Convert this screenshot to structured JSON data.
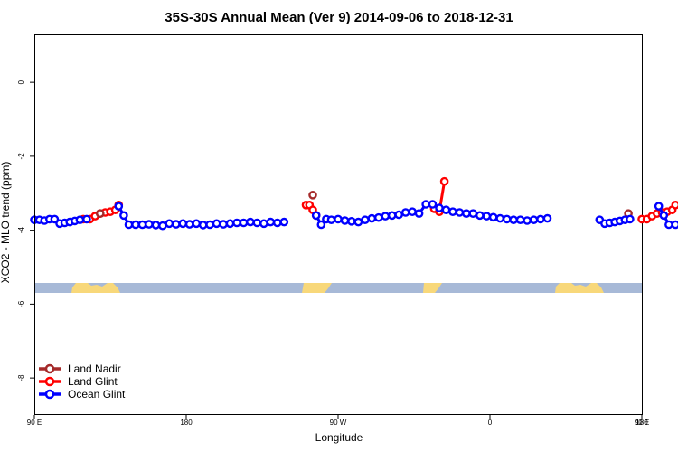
{
  "chart_data": {
    "type": "line",
    "title": "35S-30S Annual Mean (Ver 9)   2014-09-06 to 2018-12-31",
    "xlabel": "Longitude",
    "ylabel": "XCO2 - MLO trend (ppm)",
    "xlim": [
      90,
      450
    ],
    "ylim": [
      -9,
      1.3
    ],
    "x_ticks": [
      {
        "value": 90,
        "label": "90 E"
      },
      {
        "value": 180,
        "label": "180"
      },
      {
        "value": 270,
        "label": "90 W"
      },
      {
        "value": 360,
        "label": "0"
      },
      {
        "value": 450,
        "label": "90 E"
      },
      {
        "value": 540,
        "label": "180"
      }
    ],
    "y_ticks": [
      {
        "value": 0,
        "label": "0"
      },
      {
        "value": -2,
        "label": "-2"
      },
      {
        "value": -4,
        "label": "-4"
      },
      {
        "value": -6,
        "label": "-6"
      },
      {
        "value": -8,
        "label": "-8"
      }
    ],
    "legend_position": "bottom-left",
    "colors": {
      "land_nadir": "#a52a2a",
      "land_glint": "#ff0000",
      "ocean_glint": "#0000ff",
      "ocean_band": "#a7b9d7",
      "land_band": "#f8d87a"
    },
    "series": [
      {
        "name": "Land Nadir",
        "color": "#a52a2a",
        "segments": [
          [
            [
              129,
              -3.55
            ]
          ],
          [
            [
              255,
              -3.05
            ]
          ],
          [
            [
              442,
              -3.55
            ]
          ]
        ]
      },
      {
        "name": "Land Glint",
        "color": "#ff0000",
        "segments": [
          [
            [
              119,
              -3.7
            ],
            [
              123,
              -3.7
            ],
            [
              126,
              -3.62
            ],
            [
              129,
              -3.55
            ],
            [
              132,
              -3.52
            ],
            [
              135,
              -3.5
            ],
            [
              138,
              -3.45
            ],
            [
              140,
              -3.32
            ]
          ],
          [
            [
              251,
              -3.32
            ],
            [
              253,
              -3.32
            ],
            [
              255,
              -3.45
            ],
            [
              257,
              -3.6
            ]
          ],
          [
            [
              327,
              -3.42
            ],
            [
              330,
              -3.5
            ],
            [
              333,
              -2.68
            ]
          ],
          [
            [
              450,
              -3.7
            ],
            [
              453,
              -3.7
            ],
            [
              456,
              -3.62
            ],
            [
              459,
              -3.55
            ],
            [
              462,
              -3.52
            ],
            [
              465,
              -3.5
            ],
            [
              468,
              -3.45
            ],
            [
              470,
              -3.32
            ]
          ]
        ]
      },
      {
        "name": "Ocean Glint",
        "color": "#0000ff",
        "segments": [
          [
            [
              90,
              -3.72
            ],
            [
              93,
              -3.72
            ],
            [
              96,
              -3.74
            ],
            [
              99,
              -3.7
            ],
            [
              102,
              -3.7
            ],
            [
              105,
              -3.82
            ],
            [
              108,
              -3.8
            ],
            [
              111,
              -3.78
            ],
            [
              114,
              -3.75
            ],
            [
              117,
              -3.72
            ],
            [
              121,
              -3.7
            ]
          ],
          [
            [
              140,
              -3.35
            ],
            [
              143,
              -3.6
            ],
            [
              146,
              -3.85
            ],
            [
              150,
              -3.85
            ],
            [
              154,
              -3.85
            ],
            [
              158,
              -3.84
            ],
            [
              162,
              -3.86
            ],
            [
              166,
              -3.88
            ],
            [
              170,
              -3.82
            ],
            [
              174,
              -3.84
            ],
            [
              178,
              -3.82
            ],
            [
              182,
              -3.84
            ],
            [
              186,
              -3.82
            ],
            [
              190,
              -3.86
            ],
            [
              194,
              -3.85
            ],
            [
              198,
              -3.82
            ],
            [
              202,
              -3.84
            ],
            [
              206,
              -3.82
            ],
            [
              210,
              -3.8
            ],
            [
              214,
              -3.8
            ],
            [
              218,
              -3.78
            ],
            [
              222,
              -3.8
            ],
            [
              226,
              -3.82
            ],
            [
              230,
              -3.78
            ],
            [
              234,
              -3.8
            ],
            [
              238,
              -3.78
            ]
          ],
          [
            [
              257,
              -3.6
            ],
            [
              260,
              -3.85
            ],
            [
              263,
              -3.7
            ],
            [
              266,
              -3.72
            ],
            [
              270,
              -3.7
            ],
            [
              274,
              -3.74
            ],
            [
              278,
              -3.76
            ],
            [
              282,
              -3.78
            ],
            [
              286,
              -3.72
            ],
            [
              290,
              -3.68
            ],
            [
              294,
              -3.66
            ],
            [
              298,
              -3.62
            ],
            [
              302,
              -3.6
            ],
            [
              306,
              -3.58
            ],
            [
              310,
              -3.52
            ],
            [
              314,
              -3.5
            ],
            [
              318,
              -3.55
            ],
            [
              322,
              -3.3
            ],
            [
              326,
              -3.3
            ],
            [
              330,
              -3.4
            ],
            [
              334,
              -3.45
            ],
            [
              338,
              -3.5
            ],
            [
              342,
              -3.52
            ],
            [
              346,
              -3.55
            ],
            [
              350,
              -3.55
            ],
            [
              354,
              -3.6
            ],
            [
              358,
              -3.62
            ],
            [
              362,
              -3.65
            ],
            [
              366,
              -3.68
            ],
            [
              370,
              -3.7
            ],
            [
              374,
              -3.72
            ],
            [
              378,
              -3.72
            ],
            [
              382,
              -3.74
            ],
            [
              386,
              -3.72
            ],
            [
              390,
              -3.7
            ],
            [
              394,
              -3.68
            ]
          ],
          [
            [
              425,
              -3.72
            ],
            [
              428,
              -3.82
            ],
            [
              431,
              -3.8
            ],
            [
              434,
              -3.78
            ],
            [
              437,
              -3.75
            ],
            [
              440,
              -3.72
            ],
            [
              443,
              -3.7
            ]
          ],
          [
            [
              460,
              -3.35
            ],
            [
              463,
              -3.6
            ],
            [
              466,
              -3.85
            ],
            [
              470,
              -3.85
            ],
            [
              474,
              -3.85
            ],
            [
              478,
              -3.84
            ]
          ]
        ]
      }
    ]
  }
}
